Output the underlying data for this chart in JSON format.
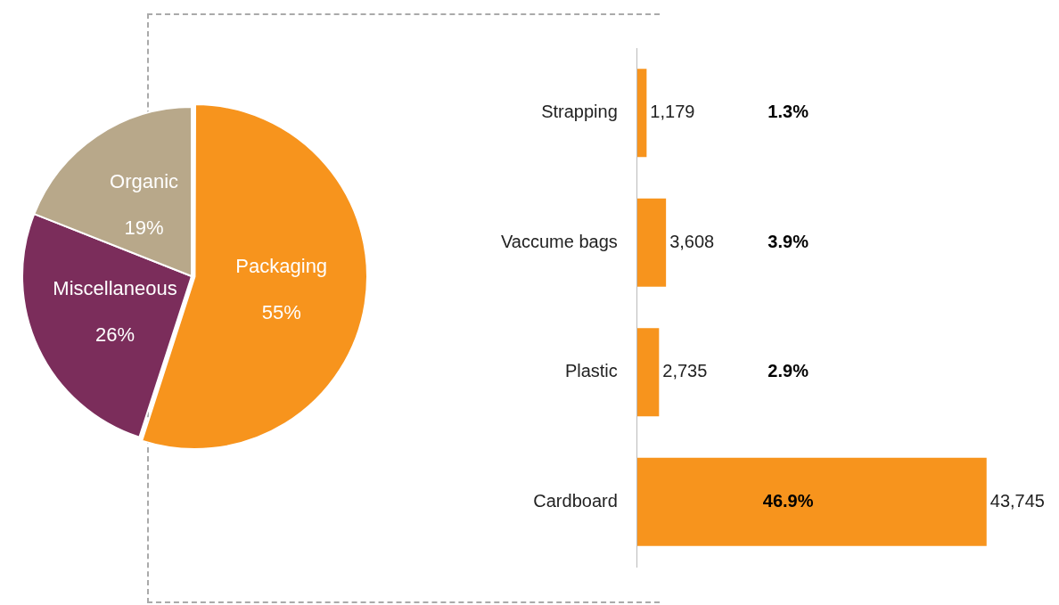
{
  "chart_data": [
    {
      "type": "pie",
      "categories": [
        "Packaging",
        "Miscellaneous",
        "Organic"
      ],
      "values": [
        55,
        26,
        19
      ],
      "colors": [
        "#f7941d",
        "#7b2d5b",
        "#b8a88a"
      ],
      "value_labels": [
        "55%",
        "26%",
        "19%"
      ],
      "legend": false
    },
    {
      "type": "bar",
      "orientation": "horizontal",
      "categories": [
        "Strapping",
        "Vaccume bags",
        "Plastic",
        "Cardboard"
      ],
      "values": [
        1179,
        3608,
        2735,
        43745
      ],
      "color": "#f7941d",
      "value_labels": [
        "1,179",
        "3,608",
        "2,735",
        "43,745"
      ],
      "legend": false,
      "annotations": [
        "1.3%",
        "3.9%",
        "2.9%",
        "46.9%"
      ]
    }
  ]
}
